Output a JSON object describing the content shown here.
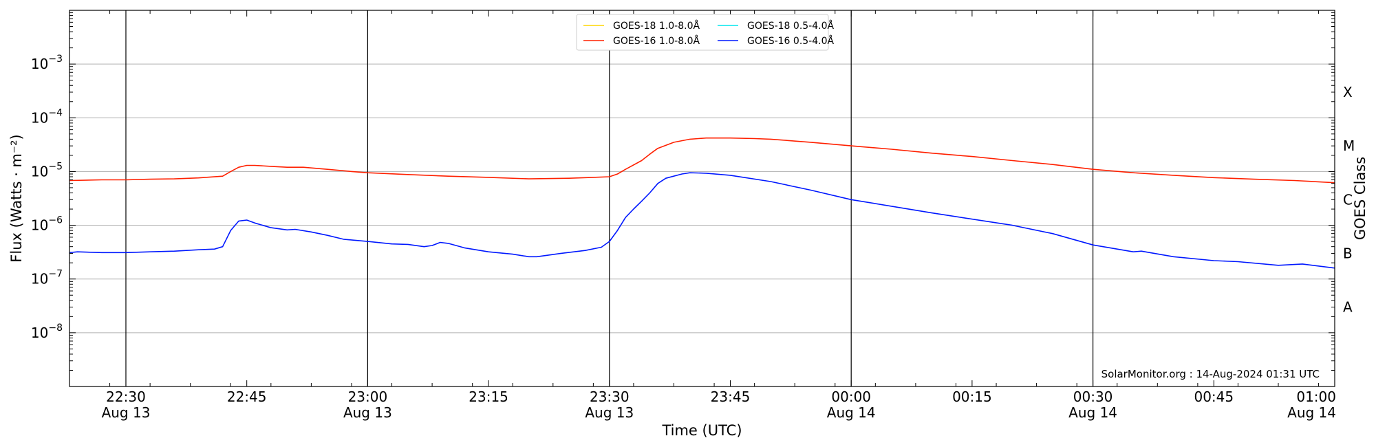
{
  "chart_data": {
    "type": "line",
    "title": "",
    "xlabel": "Time (UTC)",
    "ylabel": "Flux (Watts · m⁻²)",
    "y2label": "GOES Class",
    "y_scale": "log",
    "ylim": [
      1e-09,
      0.01
    ],
    "xlim": [
      "2024-08-13 22:23",
      "2024-08-14 01:00"
    ],
    "grid": true,
    "legend_position": "top-center",
    "y_ticks": [
      {
        "value": 1e-08,
        "mantissa": "10",
        "exp": "−8"
      },
      {
        "value": 1e-07,
        "mantissa": "10",
        "exp": "−7"
      },
      {
        "value": 1e-06,
        "mantissa": "10",
        "exp": "−6"
      },
      {
        "value": 1e-05,
        "mantissa": "10",
        "exp": "−5"
      },
      {
        "value": 0.0001,
        "mantissa": "10",
        "exp": "−4"
      },
      {
        "value": 0.001,
        "mantissa": "10",
        "exp": "−3"
      }
    ],
    "x_ticks": [
      {
        "time": "2024-08-13 22:30",
        "label": "22:30",
        "date": "Aug 13",
        "day_line": true
      },
      {
        "time": "2024-08-13 22:45",
        "label": "22:45",
        "date": "",
        "day_line": false
      },
      {
        "time": "2024-08-13 23:00",
        "label": "23:00",
        "date": "Aug 13",
        "day_line": true
      },
      {
        "time": "2024-08-13 23:15",
        "label": "23:15",
        "date": "",
        "day_line": false
      },
      {
        "time": "2024-08-13 23:30",
        "label": "23:30",
        "date": "Aug 13",
        "day_line": true
      },
      {
        "time": "2024-08-13 23:45",
        "label": "23:45",
        "date": "",
        "day_line": false
      },
      {
        "time": "2024-08-14 00:00",
        "label": "00:00",
        "date": "Aug 14",
        "day_line": true
      },
      {
        "time": "2024-08-14 00:15",
        "label": "00:15",
        "date": "",
        "day_line": false
      },
      {
        "time": "2024-08-14 00:30",
        "label": "00:30",
        "date": "Aug 14",
        "day_line": true
      },
      {
        "time": "2024-08-14 00:45",
        "label": "00:45",
        "date": "",
        "day_line": false
      },
      {
        "time": "2024-08-14 01:00",
        "label": "01:00",
        "date": "Aug 14",
        "day_line": false
      }
    ],
    "goes_classes": [
      {
        "label": "X",
        "value": 0.0003
      },
      {
        "label": "M",
        "value": 3e-05
      },
      {
        "label": "C",
        "value": 3e-06
      },
      {
        "label": "B",
        "value": 3e-07
      },
      {
        "label": "A",
        "value": 3e-08
      }
    ],
    "series": [
      {
        "name": "GOES-18 1.0-8.0Å",
        "color": "#ffd700",
        "x": [],
        "y": []
      },
      {
        "name": "GOES-18 0.5-4.0Å",
        "color": "#00e5ee",
        "x": [],
        "y": []
      },
      {
        "name": "GOES-16 1.0-8.0Å",
        "color": "#ff2000",
        "x": [
          "2024-08-13 22:23",
          "2024-08-13 22:27",
          "2024-08-13 22:30",
          "2024-08-13 22:33",
          "2024-08-13 22:36",
          "2024-08-13 22:39",
          "2024-08-13 22:42",
          "2024-08-13 22:43",
          "2024-08-13 22:44",
          "2024-08-13 22:45",
          "2024-08-13 22:46",
          "2024-08-13 22:48",
          "2024-08-13 22:50",
          "2024-08-13 22:52",
          "2024-08-13 22:55",
          "2024-08-13 22:58",
          "2024-08-13 23:00",
          "2024-08-13 23:05",
          "2024-08-13 23:10",
          "2024-08-13 23:15",
          "2024-08-13 23:20",
          "2024-08-13 23:25",
          "2024-08-13 23:28",
          "2024-08-13 23:30",
          "2024-08-13 23:31",
          "2024-08-13 23:32",
          "2024-08-13 23:34",
          "2024-08-13 23:35",
          "2024-08-13 23:36",
          "2024-08-13 23:38",
          "2024-08-13 23:40",
          "2024-08-13 23:42",
          "2024-08-13 23:45",
          "2024-08-13 23:48",
          "2024-08-13 23:50",
          "2024-08-13 23:55",
          "2024-08-14 00:00",
          "2024-08-14 00:05",
          "2024-08-14 00:10",
          "2024-08-14 00:15",
          "2024-08-14 00:20",
          "2024-08-14 00:25",
          "2024-08-14 00:30",
          "2024-08-14 00:35",
          "2024-08-14 00:40",
          "2024-08-14 00:45",
          "2024-08-14 00:50",
          "2024-08-14 00:55",
          "2024-08-14 01:00"
        ],
        "y": [
          6.8e-06,
          7e-06,
          7e-06,
          7.2e-06,
          7.3e-06,
          7.6e-06,
          8.2e-06,
          1e-05,
          1.2e-05,
          1.3e-05,
          1.3e-05,
          1.25e-05,
          1.2e-05,
          1.2e-05,
          1.1e-05,
          1e-05,
          9.5e-06,
          8.8e-06,
          8.2e-06,
          7.8e-06,
          7.3e-06,
          7.5e-06,
          7.8e-06,
          8e-06,
          9e-06,
          1.1e-05,
          1.6e-05,
          2.1e-05,
          2.7e-05,
          3.5e-05,
          4e-05,
          4.2e-05,
          4.2e-05,
          4.1e-05,
          4e-05,
          3.5e-05,
          3e-05,
          2.6e-05,
          2.2e-05,
          1.9e-05,
          1.6e-05,
          1.35e-05,
          1.1e-05,
          9.5e-06,
          8.5e-06,
          7.7e-06,
          7.2e-06,
          6.8e-06,
          6.2e-06
        ]
      },
      {
        "name": "GOES-16 0.5-4.0Å",
        "color": "#0018ff",
        "x": [
          "2024-08-13 22:23",
          "2024-08-13 22:24",
          "2024-08-13 22:27",
          "2024-08-13 22:30",
          "2024-08-13 22:33",
          "2024-08-13 22:36",
          "2024-08-13 22:39",
          "2024-08-13 22:41",
          "2024-08-13 22:42",
          "2024-08-13 22:43",
          "2024-08-13 22:44",
          "2024-08-13 22:45",
          "2024-08-13 22:46",
          "2024-08-13 22:48",
          "2024-08-13 22:50",
          "2024-08-13 22:51",
          "2024-08-13 22:53",
          "2024-08-13 22:55",
          "2024-08-13 22:57",
          "2024-08-13 23:00",
          "2024-08-13 23:03",
          "2024-08-13 23:05",
          "2024-08-13 23:07",
          "2024-08-13 23:08",
          "2024-08-13 23:09",
          "2024-08-13 23:10",
          "2024-08-13 23:12",
          "2024-08-13 23:15",
          "2024-08-13 23:18",
          "2024-08-13 23:20",
          "2024-08-13 23:21",
          "2024-08-13 23:24",
          "2024-08-13 23:27",
          "2024-08-13 23:29",
          "2024-08-13 23:30",
          "2024-08-13 23:31",
          "2024-08-13 23:32",
          "2024-08-13 23:33",
          "2024-08-13 23:34",
          "2024-08-13 23:35",
          "2024-08-13 23:36",
          "2024-08-13 23:37",
          "2024-08-13 23:39",
          "2024-08-13 23:40",
          "2024-08-13 23:42",
          "2024-08-13 23:45",
          "2024-08-13 23:50",
          "2024-08-13 23:55",
          "2024-08-14 00:00",
          "2024-08-14 00:10",
          "2024-08-14 00:20",
          "2024-08-14 00:25",
          "2024-08-14 00:30",
          "2024-08-14 00:35",
          "2024-08-14 00:36",
          "2024-08-14 00:40",
          "2024-08-14 00:45",
          "2024-08-14 00:48",
          "2024-08-14 00:53",
          "2024-08-14 00:56",
          "2024-08-14 01:00"
        ],
        "y": [
          3.1e-07,
          3.2e-07,
          3.1e-07,
          3.1e-07,
          3.2e-07,
          3.3e-07,
          3.5e-07,
          3.6e-07,
          4e-07,
          8e-07,
          1.2e-06,
          1.25e-06,
          1.1e-06,
          9e-07,
          8.2e-07,
          8.4e-07,
          7.5e-07,
          6.5e-07,
          5.5e-07,
          5e-07,
          4.5e-07,
          4.4e-07,
          4e-07,
          4.2e-07,
          4.8e-07,
          4.6e-07,
          3.8e-07,
          3.2e-07,
          2.9e-07,
          2.6e-07,
          2.6e-07,
          3e-07,
          3.4e-07,
          3.9e-07,
          5e-07,
          8e-07,
          1.4e-06,
          2e-06,
          2.8e-06,
          4e-06,
          6e-06,
          7.5e-06,
          9e-06,
          9.5e-06,
          9.3e-06,
          8.5e-06,
          6.5e-06,
          4.5e-06,
          3e-06,
          1.7e-06,
          1e-06,
          7e-07,
          4.3e-07,
          3.2e-07,
          3.3e-07,
          2.6e-07,
          2.2e-07,
          2.1e-07,
          1.8e-07,
          1.9e-07,
          1.6e-07
        ]
      }
    ],
    "footer": "SolarMonitor.org : 14-Aug-2024 01:31 UTC"
  }
}
